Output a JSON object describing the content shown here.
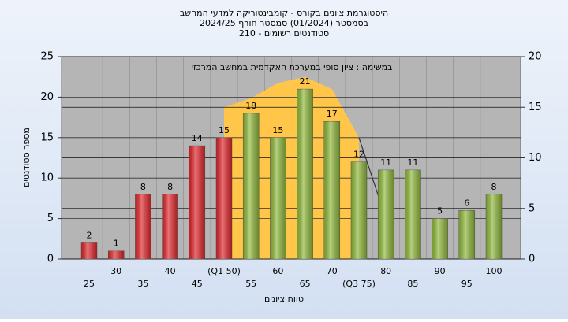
{
  "chart_data": {
    "type": "bar",
    "title": [
      "היסטוגרמת ציונים בקורס - קומבינטוריקה למדעי המחשב",
      "בסמסטר  (01/2024)  סמסטר חורף 2024/25",
      "סטודנטים רשומים - 210"
    ],
    "annotation": "במשימה : ציון סופי במערכת האקדמית במחשב המרכזי",
    "xlabel": "טווח ציונים",
    "ylabel": "מספר סטודנטים",
    "categories": [
      "25",
      "30",
      "35",
      "40",
      "45",
      "(Q1 50)",
      "55",
      "60",
      "65",
      "70",
      "(Q3 75)",
      "80",
      "85",
      "90",
      "95",
      "100"
    ],
    "values": [
      2,
      1,
      8,
      8,
      14,
      15,
      18,
      15,
      21,
      17,
      12,
      11,
      11,
      5,
      6,
      8
    ],
    "colors": [
      "#e0262b",
      "#e0262b",
      "#e0262b",
      "#e0262b",
      "#e0262b",
      "#e0262b",
      "#8fb83a",
      "#8fb83a",
      "#8fb83a",
      "#8fb83a",
      "#8fb83a",
      "#8fb83a",
      "#8fb83a",
      "#8fb83a",
      "#8fb83a",
      "#8fb83a"
    ],
    "overlay": [
      {
        "type": "area",
        "axis": "y2",
        "color": "#ffc64a",
        "values": [
          null,
          null,
          null,
          null,
          null,
          15,
          15.9,
          17.4,
          18,
          16.8,
          12,
          null,
          null,
          null,
          null,
          null
        ]
      },
      {
        "type": "line",
        "axis": "y2",
        "color": "#333333",
        "values": [
          null,
          null,
          null,
          null,
          null,
          null,
          null,
          null,
          null,
          null,
          12,
          4,
          null,
          null,
          null,
          null
        ]
      }
    ],
    "ylim": [
      0,
      25
    ],
    "yticks": [
      0,
      5,
      10,
      15,
      20,
      25
    ],
    "y2lim": [
      0,
      20
    ],
    "y2ticks": [
      0,
      5,
      10,
      15,
      20
    ],
    "grid": true
  }
}
